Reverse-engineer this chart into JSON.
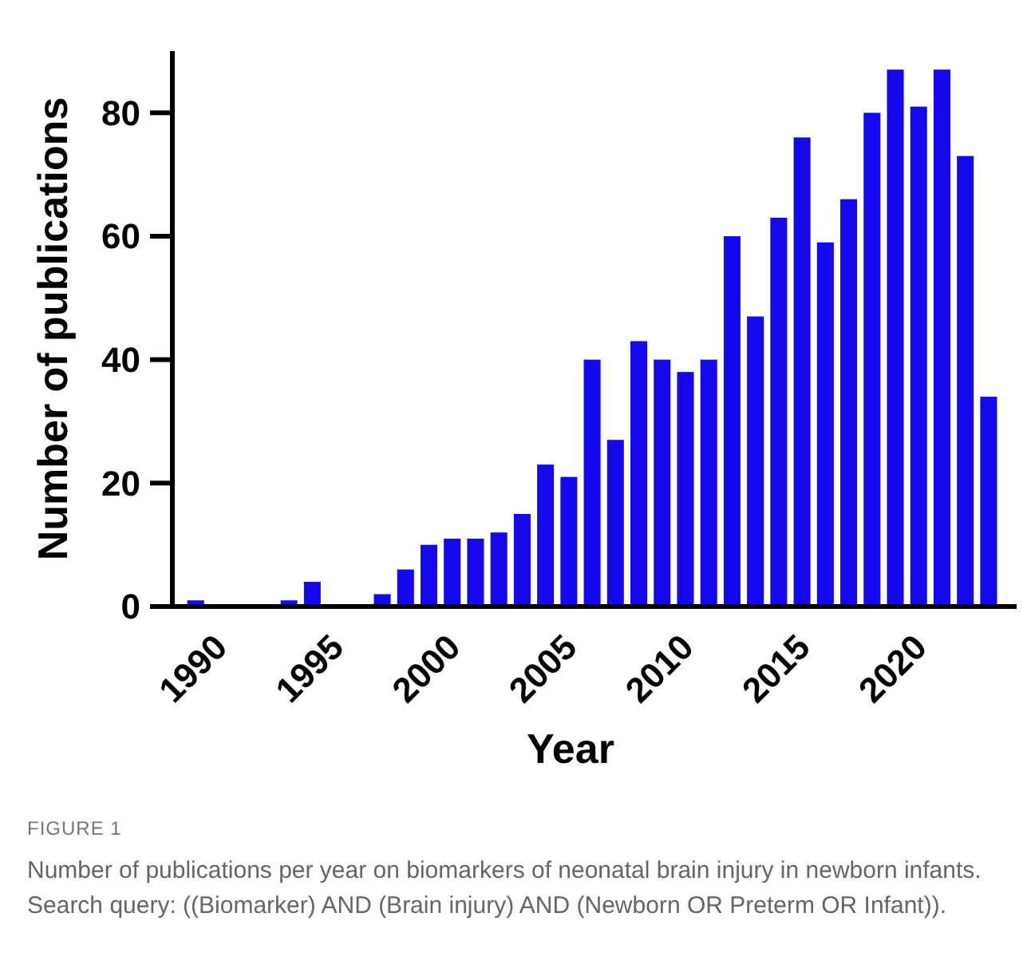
{
  "chart_data": {
    "type": "bar",
    "xlabel": "Year",
    "ylabel": "Number of publications",
    "x": [
      1990,
      1991,
      1992,
      1993,
      1994,
      1995,
      1996,
      1997,
      1998,
      1999,
      2000,
      2001,
      2002,
      2003,
      2004,
      2005,
      2006,
      2007,
      2008,
      2009,
      2010,
      2011,
      2012,
      2013,
      2014,
      2015,
      2016,
      2017,
      2018,
      2019,
      2020,
      2021,
      2022,
      2023,
      2024
    ],
    "values": [
      1,
      0,
      0,
      0,
      1,
      4,
      0,
      0,
      2,
      6,
      10,
      11,
      11,
      12,
      15,
      23,
      21,
      40,
      27,
      43,
      40,
      38,
      40,
      60,
      47,
      63,
      76,
      59,
      66,
      80,
      87,
      81,
      87,
      73,
      34
    ],
    "color": "#1508ec",
    "xlim": [
      1989,
      2025.2
    ],
    "xticks": [
      1990,
      1995,
      2000,
      2005,
      2010,
      2015,
      2020
    ],
    "ylim": [
      0,
      90
    ],
    "yticks": [
      0,
      20,
      40,
      60,
      80
    ],
    "grid": false,
    "annotations": [
      "FIGURE 1",
      "Number of publications per year on biomarkers of neonatal brain injury in newborn infants. Search query: ((Biomarker) AND (Brain injury) AND (Newborn OR Preterm OR Infant))."
    ]
  }
}
